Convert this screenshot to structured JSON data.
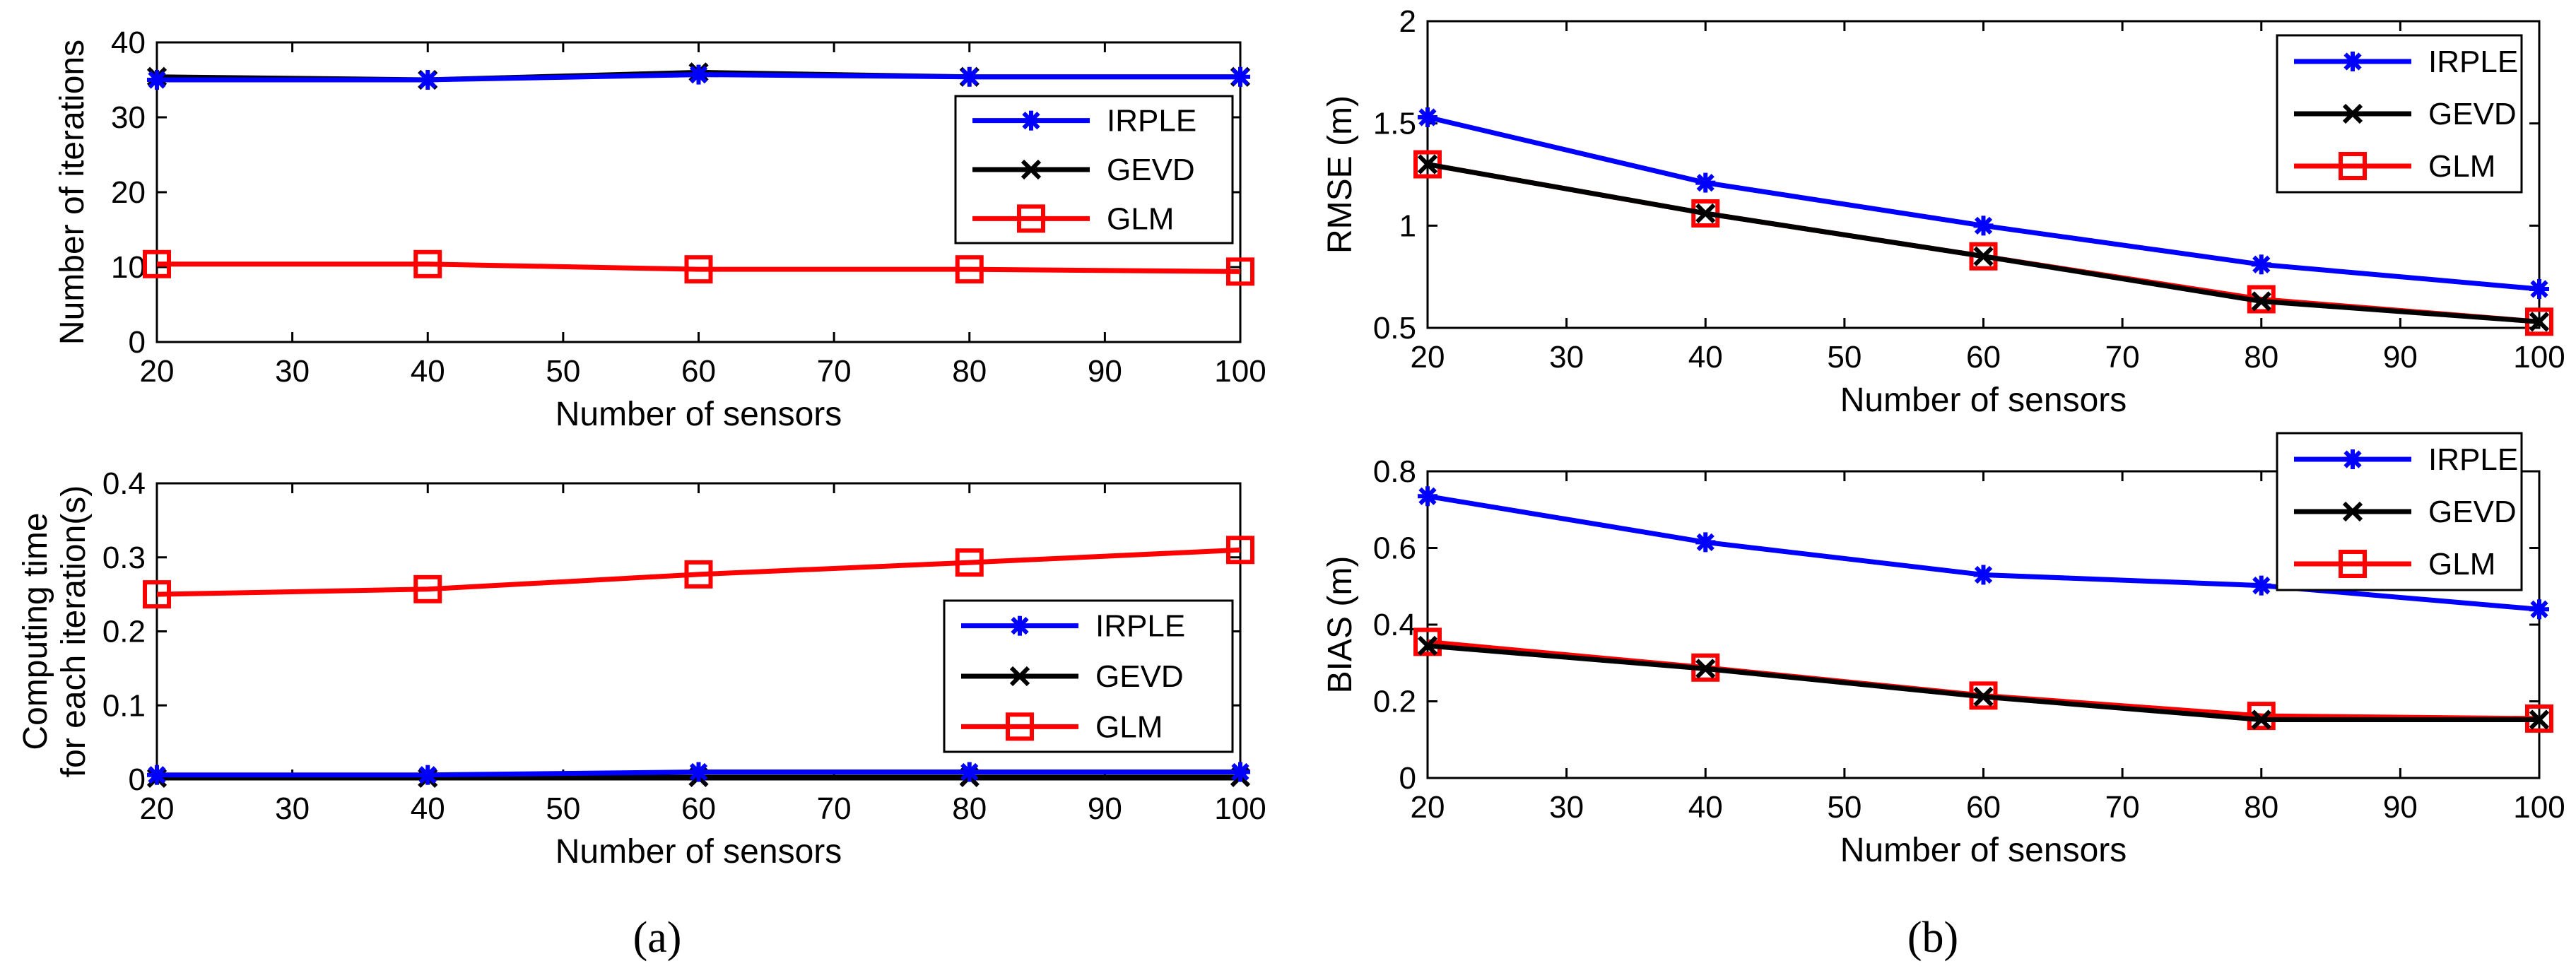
{
  "figure": {
    "panel_labels": {
      "a": "(a)",
      "b": "(b)"
    }
  },
  "colors": {
    "IRPLE": "#0000ff",
    "GEVD": "#000000",
    "GLM": "#ff0000",
    "axes": "#000000",
    "background": "#ffffff"
  },
  "chart_data": [
    {
      "id": "iterations",
      "panel": "(a)",
      "type": "line",
      "title": "",
      "xlabel": "Number of sensors",
      "ylabel": [
        "Number of iterations"
      ],
      "x": [
        20,
        40,
        60,
        80,
        100
      ],
      "xlim": [
        20,
        100
      ],
      "xticks": [
        20,
        30,
        40,
        50,
        60,
        70,
        80,
        90,
        100
      ],
      "ylim": [
        0,
        40
      ],
      "yticks": [
        0,
        10,
        20,
        30,
        40
      ],
      "ytick_labels": [
        "0",
        "10",
        "20",
        "30",
        "40"
      ],
      "grid": false,
      "legend": {
        "placement": "right",
        "entries": [
          "IRPLE",
          "GEVD",
          "GLM"
        ]
      },
      "series": [
        {
          "name": "IRPLE",
          "marker": "asterisk",
          "values": [
            35.0,
            35.0,
            35.7,
            35.4,
            35.4
          ]
        },
        {
          "name": "GEVD",
          "marker": "x",
          "values": [
            35.4,
            35.0,
            36.0,
            35.4,
            35.4
          ]
        },
        {
          "name": "GLM",
          "marker": "square",
          "values": [
            10.4,
            10.4,
            9.7,
            9.7,
            9.4
          ]
        }
      ]
    },
    {
      "id": "computing_time",
      "panel": "(a)",
      "type": "line",
      "title": "",
      "xlabel": "Number of sensors",
      "ylabel": [
        "Computing time",
        "for each iteration(s)"
      ],
      "x": [
        20,
        40,
        60,
        80,
        100
      ],
      "xlim": [
        20,
        100
      ],
      "xticks": [
        20,
        30,
        40,
        50,
        60,
        70,
        80,
        90,
        100
      ],
      "ylim": [
        0,
        0.4
      ],
      "yticks": [
        0,
        0.1,
        0.2,
        0.3,
        0.4
      ],
      "ytick_labels": [
        "0",
        "0.1",
        "0.2",
        "0.3",
        "0.4"
      ],
      "grid": false,
      "legend": {
        "placement": "bottom-right",
        "entries": [
          "IRPLE",
          "GEVD",
          "GLM"
        ]
      },
      "series": [
        {
          "name": "IRPLE",
          "marker": "asterisk",
          "values": [
            0.006,
            0.006,
            0.01,
            0.01,
            0.01
          ]
        },
        {
          "name": "GEVD",
          "marker": "x",
          "values": [
            0.002,
            0.002,
            0.003,
            0.003,
            0.003
          ]
        },
        {
          "name": "GLM",
          "marker": "square",
          "values": [
            0.25,
            0.257,
            0.277,
            0.293,
            0.31
          ]
        }
      ]
    },
    {
      "id": "rmse",
      "panel": "(b)",
      "type": "line",
      "title": "",
      "xlabel": "Number of sensors",
      "ylabel": [
        "RMSE (m)"
      ],
      "x": [
        20,
        40,
        60,
        80,
        100
      ],
      "xlim": [
        20,
        100
      ],
      "xticks": [
        20,
        30,
        40,
        50,
        60,
        70,
        80,
        90,
        100
      ],
      "ylim": [
        0.5,
        2
      ],
      "yticks": [
        0.5,
        1,
        1.5,
        2
      ],
      "ytick_labels": [
        "0.5",
        "1",
        "1.5",
        "2"
      ],
      "grid": false,
      "legend": {
        "placement": "top-right",
        "entries": [
          "IRPLE",
          "GEVD",
          "GLM"
        ]
      },
      "series": [
        {
          "name": "IRPLE",
          "marker": "asterisk",
          "values": [
            1.53,
            1.21,
            1.0,
            0.81,
            0.69
          ]
        },
        {
          "name": "GEVD",
          "marker": "x",
          "values": [
            1.3,
            1.06,
            0.85,
            0.63,
            0.53
          ]
        },
        {
          "name": "GLM",
          "marker": "square",
          "values": [
            1.3,
            1.06,
            0.85,
            0.64,
            0.53
          ]
        }
      ]
    },
    {
      "id": "bias",
      "panel": "(b)",
      "type": "line",
      "title": "",
      "xlabel": "Number of sensors",
      "ylabel": [
        "BIAS (m)"
      ],
      "x": [
        20,
        40,
        60,
        80,
        100
      ],
      "xlim": [
        20,
        100
      ],
      "xticks": [
        20,
        30,
        40,
        50,
        60,
        70,
        80,
        90,
        100
      ],
      "ylim": [
        0,
        0.8
      ],
      "yticks": [
        0,
        0.2,
        0.4,
        0.6,
        0.8
      ],
      "ytick_labels": [
        "0",
        "0.2",
        "0.4",
        "0.6",
        "0.8"
      ],
      "grid": false,
      "legend": {
        "placement": "top-right",
        "entries": [
          "IRPLE",
          "GEVD",
          "GLM"
        ]
      },
      "series": [
        {
          "name": "IRPLE",
          "marker": "asterisk",
          "values": [
            0.735,
            0.615,
            0.53,
            0.502,
            0.44
          ]
        },
        {
          "name": "GEVD",
          "marker": "x",
          "values": [
            0.345,
            0.285,
            0.212,
            0.152,
            0.152
          ]
        },
        {
          "name": "GLM",
          "marker": "square",
          "values": [
            0.355,
            0.288,
            0.215,
            0.162,
            0.155
          ]
        }
      ]
    }
  ]
}
